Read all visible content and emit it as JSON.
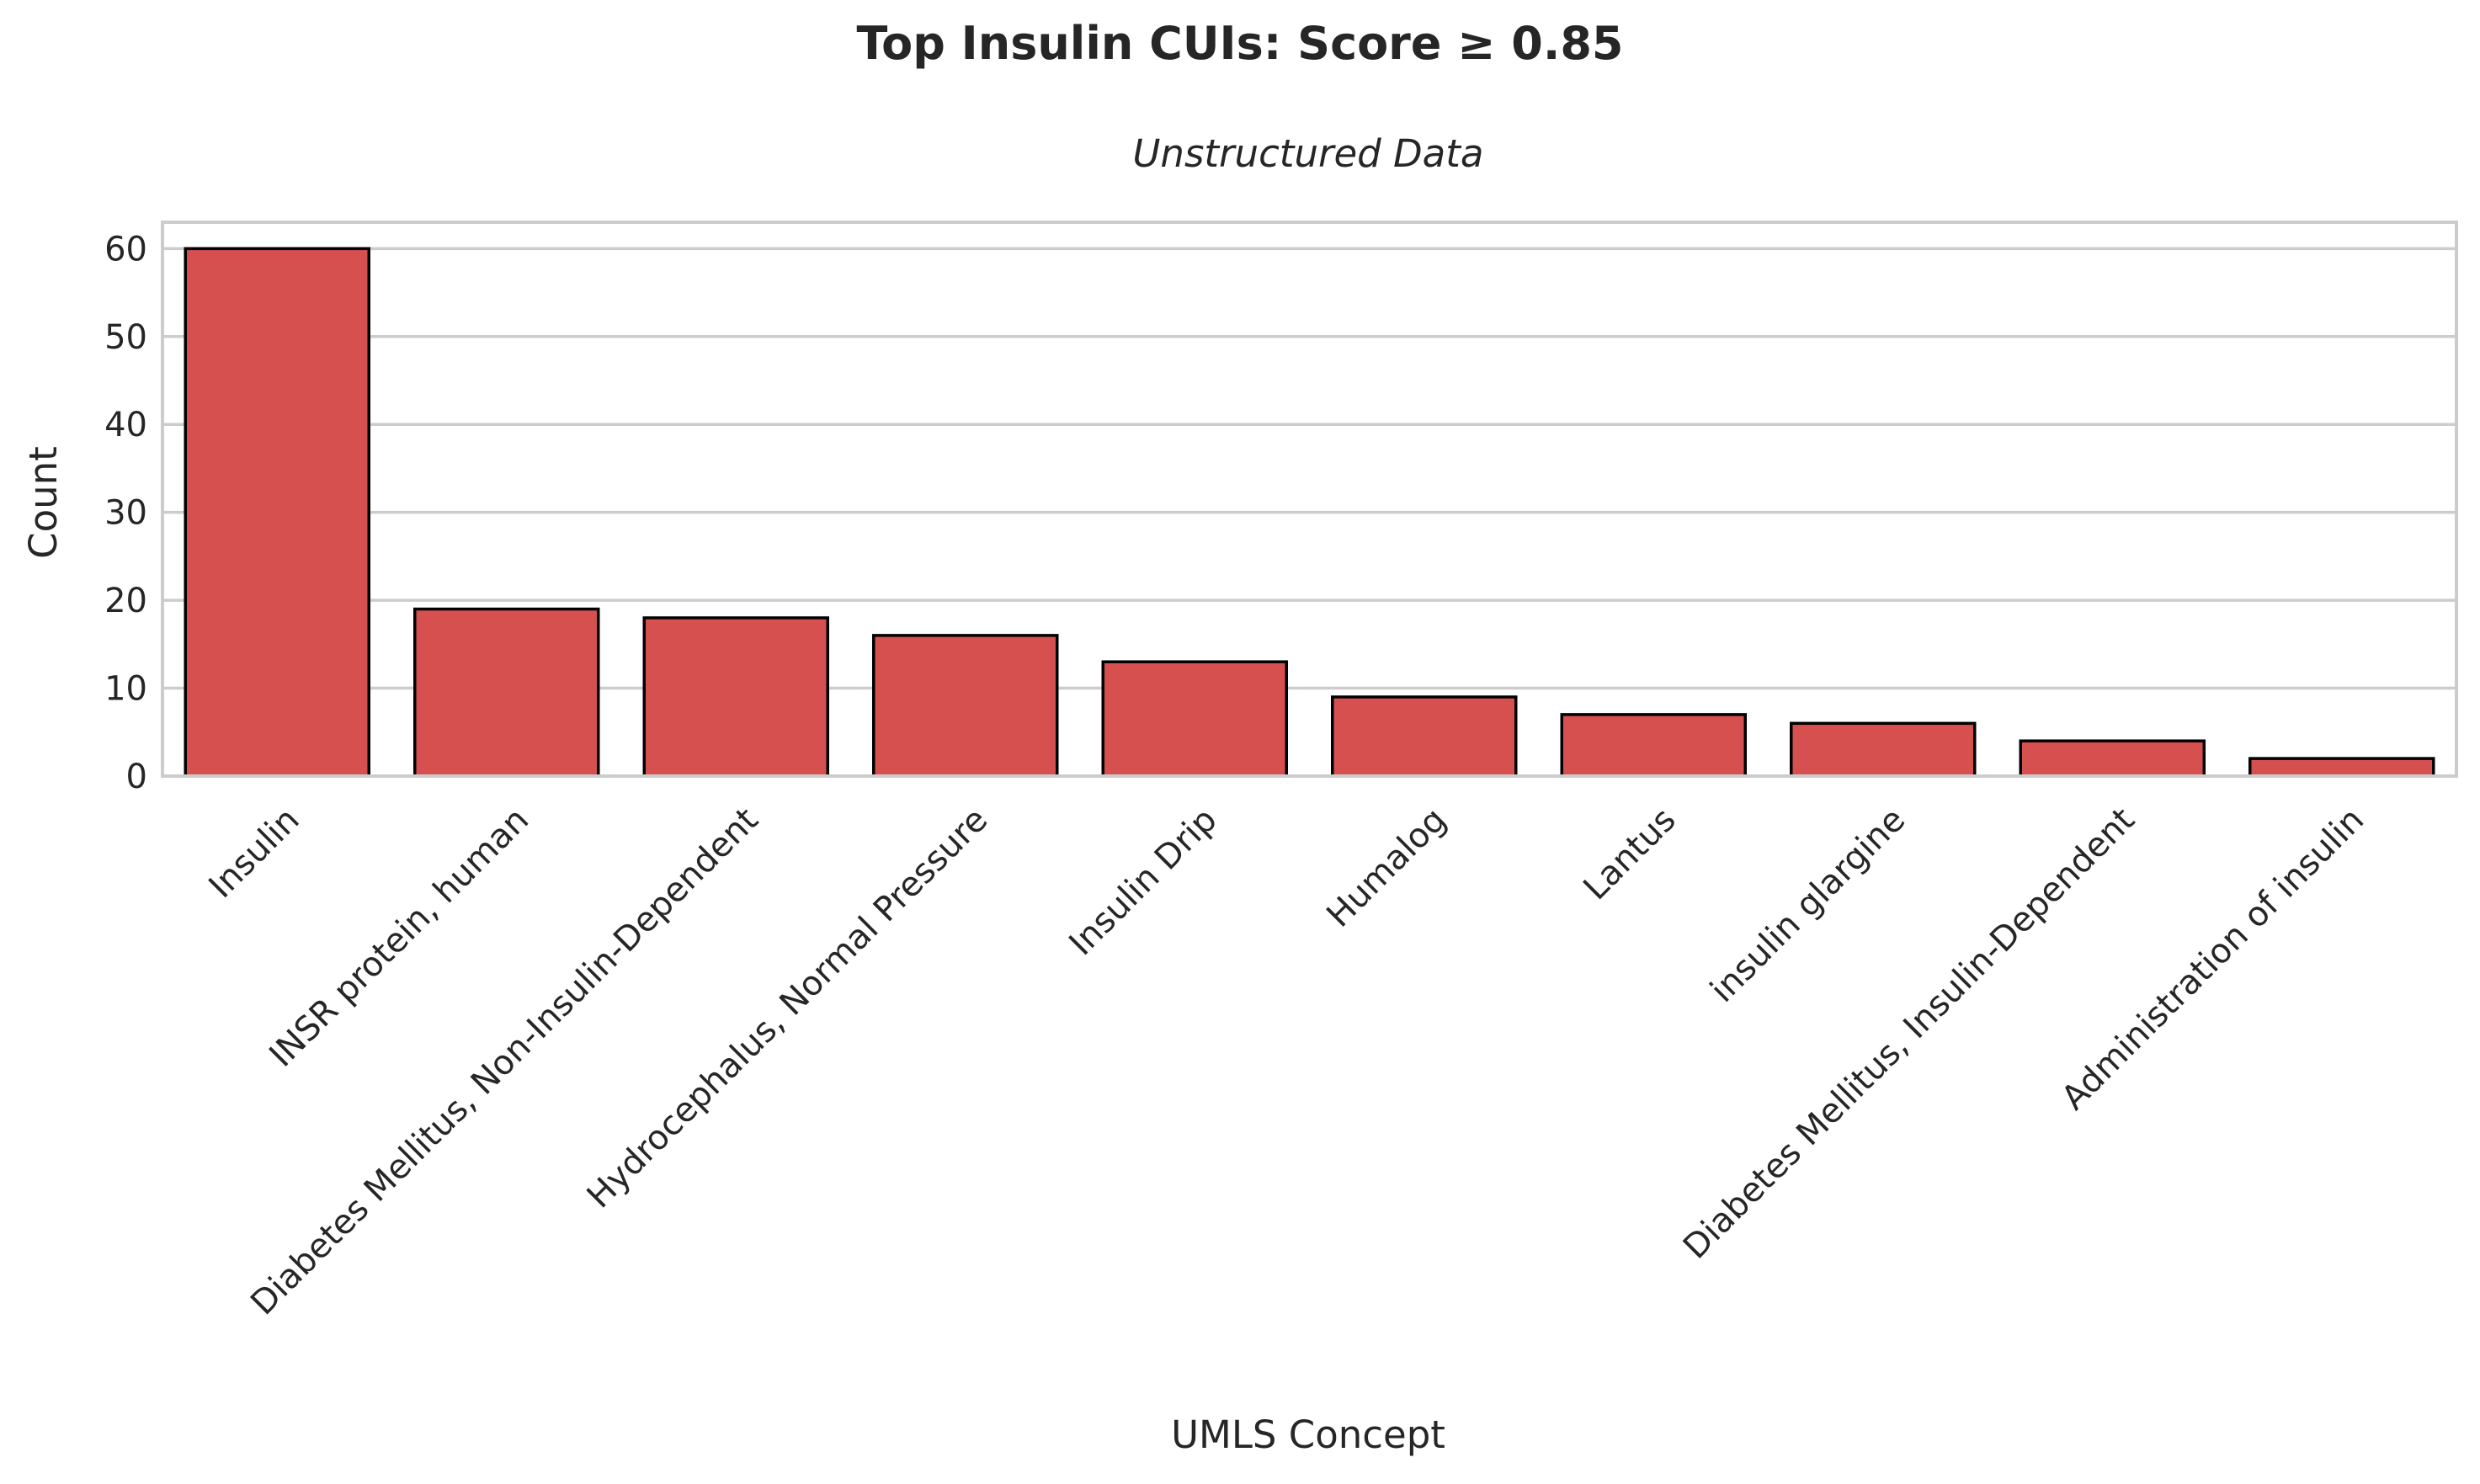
{
  "chart_data": {
    "type": "bar",
    "title": "Top Insulin CUIs: Score ≥ 0.85",
    "subtitle": "Unstructured Data",
    "xlabel": "UMLS Concept",
    "ylabel": "Count",
    "categories": [
      "Insulin",
      "INSR protein, human",
      "Diabetes Mellitus, Non-Insulin-Dependent",
      "Hydrocephalus, Normal Pressure",
      "Insulin Drip",
      "Humalog",
      "Lantus",
      "insulin glargine",
      "Diabetes Mellitus, Insulin-Dependent",
      "Administration of insulin"
    ],
    "values": [
      60,
      19,
      18,
      16,
      13,
      9,
      7,
      6,
      4,
      2
    ],
    "ylim": [
      0,
      63
    ],
    "yticks": [
      0,
      10,
      20,
      30,
      40,
      50,
      60
    ],
    "grid": true,
    "legend": "none",
    "bar_color": "#d65050",
    "edge_color": "#000000"
  }
}
